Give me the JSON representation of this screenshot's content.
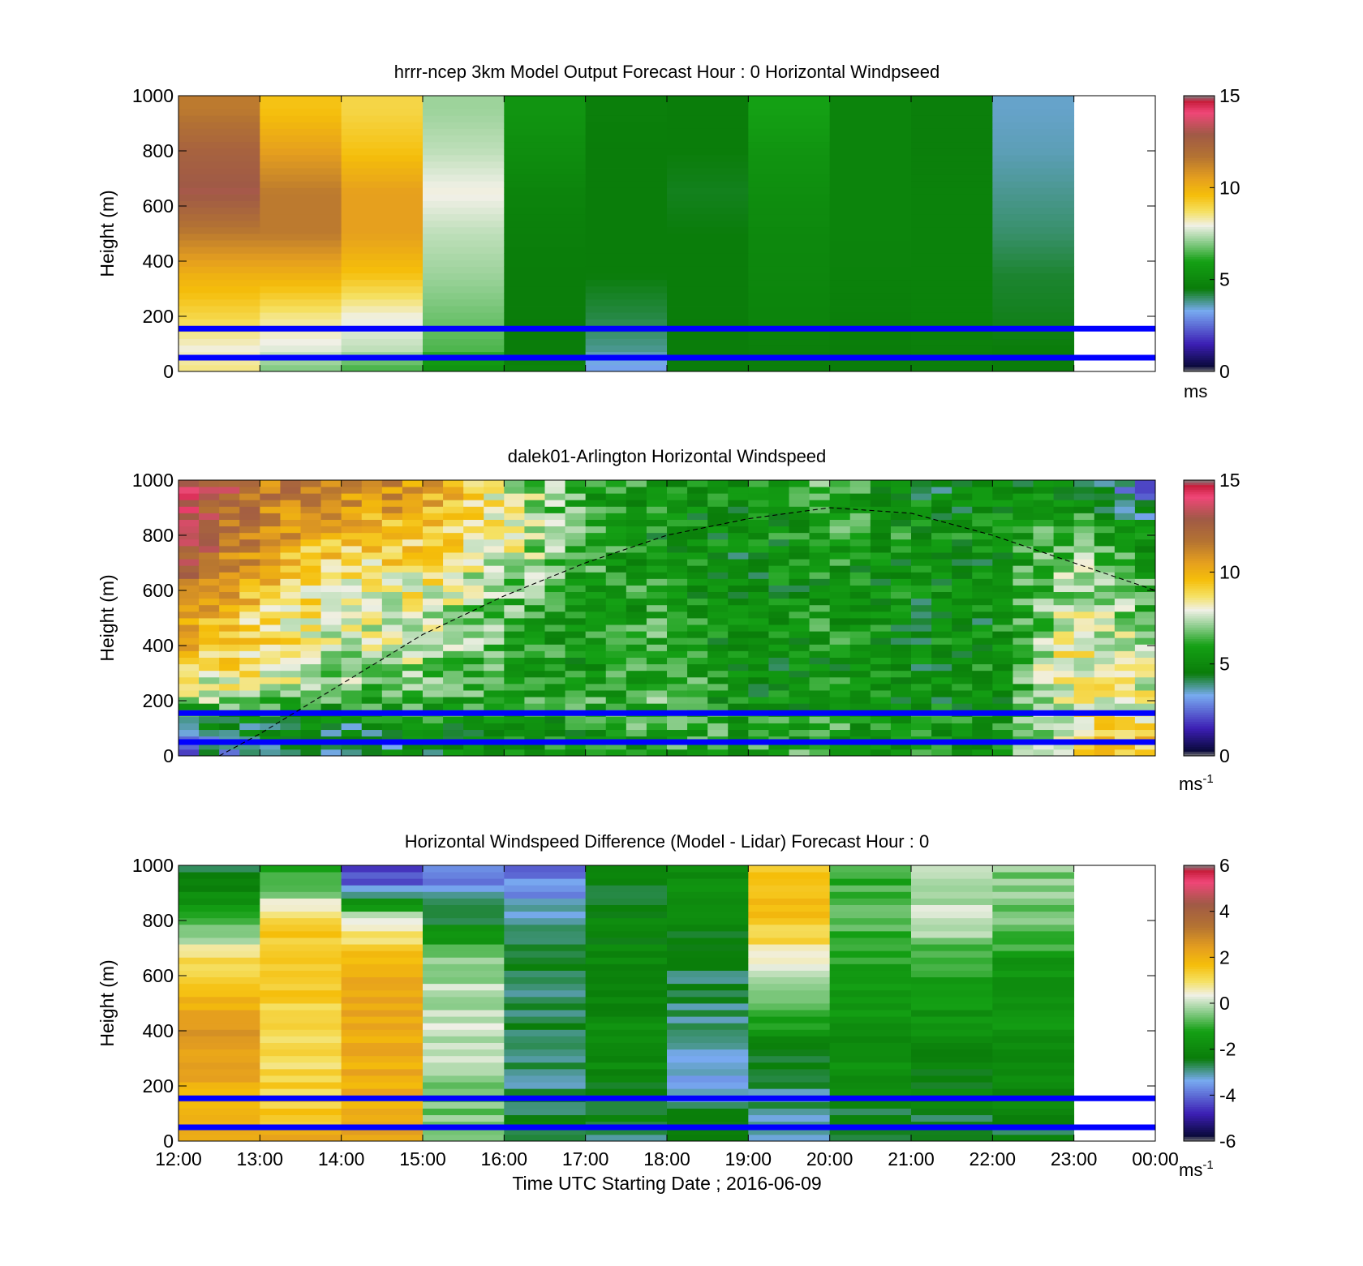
{
  "figure": {
    "xlabel": "Time UTC  Starting Date ; 2016-06-09",
    "x_ticks": [
      "12:00",
      "13:00",
      "14:00",
      "15:00",
      "16:00",
      "17:00",
      "18:00",
      "19:00",
      "20:00",
      "21:00",
      "22:00",
      "23:00",
      "00:00"
    ]
  },
  "colors": {
    "reference_lines": "#0000ff",
    "mixing_layer_curve": "#000000",
    "colormap_stops": [
      {
        "t": 0.0,
        "c": "#808080"
      },
      {
        "t": 0.02,
        "c": "#0a0a3c"
      },
      {
        "t": 0.1,
        "c": "#3c1eb4"
      },
      {
        "t": 0.22,
        "c": "#78aaf0"
      },
      {
        "t": 0.3,
        "c": "#0a7d0a"
      },
      {
        "t": 0.4,
        "c": "#14a014"
      },
      {
        "t": 0.47,
        "c": "#8ccd8c"
      },
      {
        "t": 0.53,
        "c": "#f0f0e6"
      },
      {
        "t": 0.58,
        "c": "#f5e164"
      },
      {
        "t": 0.64,
        "c": "#f5be0a"
      },
      {
        "t": 0.7,
        "c": "#e6a01e"
      },
      {
        "t": 0.78,
        "c": "#b47332"
      },
      {
        "t": 0.86,
        "c": "#a05a46"
      },
      {
        "t": 0.94,
        "c": "#f04678"
      },
      {
        "t": 0.98,
        "c": "#c81e3c"
      },
      {
        "t": 1.0,
        "c": "#808080"
      }
    ]
  },
  "panels": [
    {
      "title": "hrrr-ncep 3km Model Output   Forecast Hour : 0 Horizontal Windpseed",
      "ylabel": "Height (m)",
      "colorbar_unit": "ms",
      "colorbar_unit_sup": "",
      "y_ticks": [
        "0",
        "200",
        "400",
        "600",
        "800",
        "1000"
      ],
      "cbar_ticks": [
        "0",
        "5",
        "10",
        "15"
      ]
    },
    {
      "title": "dalek01-Arlington  Horizontal Windspeed",
      "ylabel": "Height (m)",
      "colorbar_unit": "ms",
      "colorbar_unit_sup": "-1",
      "y_ticks": [
        "0",
        "200",
        "400",
        "600",
        "800",
        "1000"
      ],
      "cbar_ticks": [
        "0",
        "5",
        "10",
        "15"
      ]
    },
    {
      "title": "Horizontal Windspeed Difference (Model - Lidar) Forecast Hour : 0",
      "ylabel": "Height (m)",
      "colorbar_unit": "ms",
      "colorbar_unit_sup": "-1",
      "y_ticks": [
        "0",
        "200",
        "400",
        "600",
        "800",
        "1000"
      ],
      "cbar_ticks": [
        "-6",
        "-4",
        "-2",
        "0",
        "2",
        "4",
        "6"
      ]
    }
  ],
  "chart_data": [
    {
      "type": "heatmap",
      "title": "hrrr-ncep 3km Model Output   Forecast Hour : 0 Horizontal Windpseed",
      "xlabel": "",
      "ylabel": "Height (m)",
      "x_range_hours_utc": [
        12,
        24
      ],
      "ylim": [
        0,
        1000
      ],
      "clim": [
        0,
        15
      ],
      "colorbar_unit": "ms",
      "z_heights_m": [
        20,
        80,
        200,
        350,
        500,
        650,
        800,
        950
      ],
      "columns": [
        {
          "start": 12,
          "end": 13,
          "z": [
            8.5,
            8.0,
            9.0,
            10.0,
            11.5,
            13.0,
            12.5,
            11.5
          ]
        },
        {
          "start": 13,
          "end": 14,
          "z": [
            7.0,
            7.8,
            8.5,
            10.0,
            11.5,
            11.5,
            10.5,
            9.5
          ]
        },
        {
          "start": 14,
          "end": 15,
          "z": [
            6.5,
            7.5,
            8.0,
            9.5,
            10.5,
            10.5,
            9.5,
            9.0
          ]
        },
        {
          "start": 15,
          "end": 16,
          "z": [
            5.5,
            6.5,
            6.8,
            7.2,
            7.5,
            8.0,
            7.5,
            7.2
          ]
        },
        {
          "start": 16,
          "end": 17,
          "z": [
            4.8,
            4.5,
            4.5,
            4.5,
            4.6,
            4.8,
            5.2,
            5.5
          ]
        },
        {
          "start": 17,
          "end": 18,
          "z": [
            3.2,
            3.8,
            4.2,
            4.5,
            4.5,
            4.5,
            4.5,
            4.6
          ]
        },
        {
          "start": 18,
          "end": 19,
          "z": [
            4.5,
            4.5,
            4.5,
            4.5,
            4.5,
            4.4,
            4.5,
            4.5
          ]
        },
        {
          "start": 19,
          "end": 20,
          "z": [
            4.6,
            4.6,
            4.8,
            4.9,
            5.0,
            5.2,
            5.5,
            6.0
          ]
        },
        {
          "start": 20,
          "end": 21,
          "z": [
            4.5,
            4.5,
            4.6,
            4.7,
            4.8,
            4.8,
            4.8,
            4.8
          ]
        },
        {
          "start": 21,
          "end": 22,
          "z": [
            4.6,
            4.6,
            4.7,
            4.7,
            4.7,
            4.7,
            4.6,
            4.6
          ]
        },
        {
          "start": 22,
          "end": 23,
          "z": [
            4.5,
            4.5,
            4.4,
            4.3,
            4.0,
            3.8,
            3.6,
            3.5
          ]
        }
      ],
      "reference_lines_m": [
        50,
        155
      ]
    },
    {
      "type": "heatmap",
      "title": "dalek01-Arlington  Horizontal Windspeed",
      "xlabel": "",
      "ylabel": "Height (m)",
      "x_range_hours_utc": [
        12,
        24
      ],
      "ylim": [
        0,
        1000
      ],
      "clim": [
        0,
        15
      ],
      "colorbar_unit": "ms-1",
      "time_step_minutes": 15,
      "z_heights_m": [
        30,
        120,
        220,
        350,
        500,
        650,
        800,
        950
      ],
      "z_hourly": [
        [
          3.0,
          4.5,
          7.5,
          9.5,
          10.5,
          12.0,
          13.5,
          14.0
        ],
        [
          4.0,
          4.8,
          7.5,
          8.5,
          9.0,
          10.0,
          11.0,
          11.5
        ],
        [
          4.2,
          4.5,
          6.5,
          7.5,
          8.0,
          8.5,
          9.5,
          11.0
        ],
        [
          4.5,
          5.5,
          6.5,
          7.5,
          7.8,
          8.5,
          9.5,
          10.5
        ],
        [
          5.0,
          5.5,
          5.8,
          6.0,
          6.5,
          7.2,
          8.5,
          8.0
        ],
        [
          5.5,
          5.5,
          6.0,
          5.5,
          5.5,
          6.0,
          6.2,
          6.0
        ],
        [
          6.0,
          6.5,
          6.5,
          6.5,
          6.0,
          5.5,
          5.2,
          5.5
        ],
        [
          6.0,
          5.5,
          5.0,
          5.0,
          5.0,
          4.8,
          5.0,
          5.2
        ],
        [
          6.0,
          6.0,
          5.5,
          5.5,
          5.8,
          5.5,
          6.0,
          6.5
        ],
        [
          5.5,
          5.5,
          5.0,
          5.0,
          5.0,
          5.2,
          5.5,
          5.0
        ],
        [
          5.0,
          5.5,
          5.0,
          5.5,
          5.0,
          5.0,
          5.5,
          4.5
        ],
        [
          9.0,
          8.5,
          8.0,
          8.5,
          8.0,
          7.5,
          6.5,
          5.5
        ],
        [
          9.5,
          9.0,
          8.0,
          7.5,
          6.5,
          6.0,
          5.0,
          2.5
        ]
      ],
      "mixing_layer_curve": {
        "x_hours_utc": [
          12.5,
          13,
          14,
          15,
          16,
          17,
          18,
          19,
          20,
          21,
          22,
          23,
          24
        ],
        "y_m": [
          0,
          80,
          260,
          440,
          580,
          700,
          800,
          860,
          900,
          880,
          800,
          700,
          600
        ]
      },
      "reference_lines_m": [
        50,
        155
      ]
    },
    {
      "type": "heatmap",
      "title": "Horizontal Windspeed Difference (Model - Lidar) Forecast Hour : 0",
      "xlabel": "Time UTC  Starting Date ; 2016-06-09",
      "ylabel": "Height (m)",
      "x_range_hours_utc": [
        12,
        24
      ],
      "ylim": [
        0,
        1000
      ],
      "clim": [
        -6,
        6
      ],
      "colorbar_unit": "ms-1",
      "z_heights_m": [
        20,
        80,
        200,
        350,
        500,
        650,
        800,
        950
      ],
      "columns": [
        {
          "start": 12,
          "end": 13,
          "z": [
            2.5,
            2.2,
            2.0,
            2.5,
            2.0,
            1.0,
            -1.0,
            -2.5
          ]
        },
        {
          "start": 13,
          "end": 14,
          "z": [
            2.0,
            1.5,
            1.2,
            1.2,
            1.3,
            1.5,
            1.2,
            -1.0
          ]
        },
        {
          "start": 14,
          "end": 15,
          "z": [
            2.5,
            2.2,
            2.0,
            2.0,
            2.2,
            1.8,
            0.5,
            -4.5
          ]
        },
        {
          "start": 15,
          "end": 16,
          "z": [
            -0.5,
            -0.5,
            -0.5,
            0.0,
            0.0,
            -0.3,
            -2.5,
            -3.8
          ]
        },
        {
          "start": 16,
          "end": 17,
          "z": [
            -2.5,
            -2.5,
            -2.8,
            -2.8,
            -2.7,
            -2.6,
            -3.0,
            -3.8
          ]
        },
        {
          "start": 17,
          "end": 18,
          "z": [
            -3.0,
            -2.5,
            -2.2,
            -2.0,
            -2.0,
            -2.0,
            -2.2,
            -2.5
          ]
        },
        {
          "start": 18,
          "end": 19,
          "z": [
            -2.5,
            -2.5,
            -3.5,
            -3.0,
            -2.8,
            -2.5,
            -2.0,
            -2.0
          ]
        },
        {
          "start": 19,
          "end": 20,
          "z": [
            -3.0,
            -3.0,
            -2.8,
            -2.0,
            -0.5,
            0.5,
            1.5,
            1.5
          ]
        },
        {
          "start": 20,
          "end": 21,
          "z": [
            -2.5,
            -2.5,
            -2.0,
            -1.8,
            -1.5,
            -1.2,
            -0.8,
            -1.0
          ]
        },
        {
          "start": 21,
          "end": 22,
          "z": [
            -2.5,
            -2.5,
            -2.2,
            -2.0,
            -1.5,
            -1.0,
            0.0,
            0.0
          ]
        },
        {
          "start": 22,
          "end": 23,
          "z": [
            -2.5,
            -2.2,
            -2.0,
            -1.8,
            -1.5,
            -1.5,
            -0.5,
            -0.5
          ]
        }
      ],
      "reference_lines_m": [
        50,
        155
      ]
    }
  ]
}
